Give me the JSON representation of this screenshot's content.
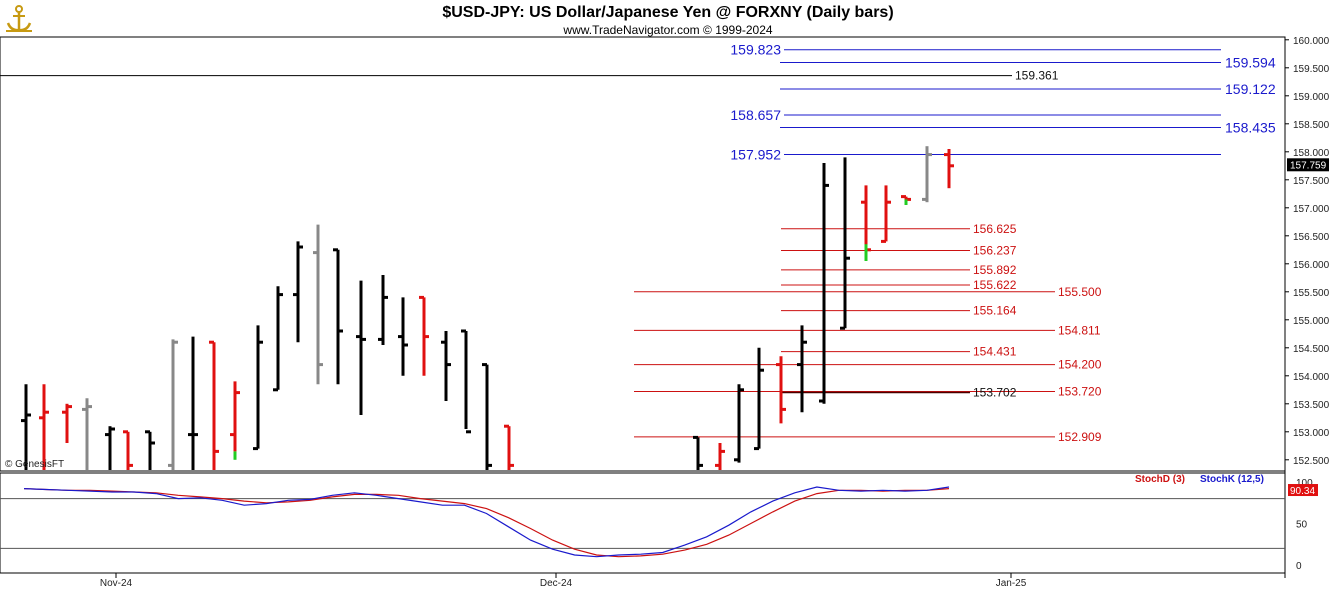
{
  "header": {
    "title": "$USD-JPY:  US Dollar/Japanese Yen @ FORXNY  (Daily bars)",
    "copyright": "www.TradeNavigator.com © 1999-2024"
  },
  "watermark": "© GenesisFT",
  "colors": {
    "up": "#000000",
    "down": "#e01010",
    "neutral": "#888888",
    "blue_level": "#1a1acc",
    "red_level": "#cc1111",
    "stoch_d": "#cc1111",
    "stoch_k": "#1a1acc",
    "last_price_bg": "#000000",
    "stoch_value_bg": "#e01010"
  },
  "chart_data": {
    "type": "ohlc-bar",
    "price_axis": {
      "min": 152.3,
      "max": 160.05,
      "ticks": [
        "160.000",
        "159.500",
        "159.000",
        "158.500",
        "158.000",
        "157.500",
        "157.000",
        "156.500",
        "156.000",
        "155.500",
        "155.000",
        "154.500",
        "154.000",
        "153.500",
        "153.000",
        "152.500"
      ]
    },
    "last_price": "157.759",
    "x_labels": [
      "Nov-24",
      "Dec-24",
      "Jan-25"
    ],
    "levels_blue": [
      {
        "label": "159.823",
        "value": 159.823,
        "side": "left"
      },
      {
        "label": "159.594",
        "value": 159.594,
        "side": "right"
      },
      {
        "label": "159.122",
        "value": 159.122,
        "side": "right"
      },
      {
        "label": "158.657",
        "value": 158.657,
        "side": "left"
      },
      {
        "label": "158.435",
        "value": 158.435,
        "side": "right"
      },
      {
        "label": "157.952",
        "value": 157.952,
        "side": "left"
      }
    ],
    "level_black_top": {
      "label": "159.361",
      "value": 159.361
    },
    "levels_red": [
      {
        "label": "156.625",
        "value": 156.625,
        "short": true
      },
      {
        "label": "156.237",
        "value": 156.237,
        "short": true
      },
      {
        "label": "155.892",
        "value": 155.892,
        "short": true
      },
      {
        "label": "155.622",
        "value": 155.622,
        "short": true
      },
      {
        "label": "155.500",
        "value": 155.5,
        "short": false
      },
      {
        "label": "155.164",
        "value": 155.164,
        "short": true
      },
      {
        "label": "154.811",
        "value": 154.811,
        "short": false
      },
      {
        "label": "154.431",
        "value": 154.431,
        "short": true
      },
      {
        "label": "154.200",
        "value": 154.2,
        "short": false
      },
      {
        "label": "153.720",
        "value": 153.72,
        "short": false
      },
      {
        "label": "152.909",
        "value": 152.909,
        "short": false
      }
    ],
    "level_dark": {
      "label": "153.702",
      "value": 153.702
    },
    "bars": [
      {
        "o": 153.2,
        "h": 153.85,
        "l": 152.3,
        "c": 153.3,
        "t": "up"
      },
      {
        "o": 153.25,
        "h": 153.85,
        "l": 152.3,
        "c": 153.35,
        "t": "down"
      },
      {
        "o": 153.35,
        "h": 153.5,
        "l": 152.8,
        "c": 153.45,
        "t": "down"
      },
      {
        "o": 153.4,
        "h": 153.6,
        "l": 152.3,
        "c": 153.45,
        "t": "neutral"
      },
      {
        "o": 152.95,
        "h": 153.1,
        "l": 152.3,
        "c": 153.05,
        "t": "up"
      },
      {
        "o": 153.0,
        "h": 153.0,
        "l": 152.3,
        "c": 152.4,
        "t": "down"
      },
      {
        "o": 153.0,
        "h": 153.0,
        "l": 152.3,
        "c": 152.8,
        "t": "up"
      },
      {
        "o": 152.4,
        "h": 154.65,
        "l": 152.3,
        "c": 154.6,
        "t": "neutral"
      },
      {
        "o": 152.95,
        "h": 154.7,
        "l": 152.3,
        "c": 152.95,
        "t": "up"
      },
      {
        "o": 154.6,
        "h": 154.6,
        "l": 152.3,
        "c": 152.65,
        "t": "down"
      },
      {
        "o": 152.95,
        "h": 153.9,
        "l": 152.65,
        "c": 153.7,
        "t": "down"
      },
      {
        "o": 152.7,
        "h": 154.9,
        "l": 152.7,
        "c": 154.6,
        "t": "up"
      },
      {
        "o": 153.75,
        "h": 155.6,
        "l": 153.75,
        "c": 155.45,
        "t": "up"
      },
      {
        "o": 155.45,
        "h": 156.4,
        "l": 154.6,
        "c": 156.3,
        "t": "up"
      },
      {
        "o": 156.2,
        "h": 156.7,
        "l": 153.85,
        "c": 154.2,
        "t": "neutral"
      },
      {
        "o": 156.25,
        "h": 156.25,
        "l": 153.85,
        "c": 154.8,
        "t": "up"
      },
      {
        "o": 154.7,
        "h": 155.7,
        "l": 153.3,
        "c": 154.65,
        "t": "up"
      },
      {
        "o": 154.65,
        "h": 155.8,
        "l": 154.55,
        "c": 155.4,
        "t": "up"
      },
      {
        "o": 154.7,
        "h": 155.4,
        "l": 154.0,
        "c": 154.55,
        "t": "up"
      },
      {
        "o": 155.4,
        "h": 155.4,
        "l": 154.0,
        "c": 154.7,
        "t": "down"
      },
      {
        "o": 154.6,
        "h": 154.8,
        "l": 153.55,
        "c": 154.2,
        "t": "up"
      },
      {
        "o": 154.8,
        "h": 154.8,
        "l": 153.05,
        "c": 153.0,
        "t": "up"
      },
      {
        "o": 154.2,
        "h": 154.2,
        "l": 152.3,
        "c": 152.4,
        "t": "up"
      },
      {
        "o": 153.1,
        "h": 153.1,
        "l": 152.3,
        "c": 152.4,
        "t": "down"
      },
      {
        "o": 152.9,
        "h": 152.9,
        "l": 152.3,
        "c": 152.4,
        "t": "up"
      },
      {
        "o": 152.4,
        "h": 152.8,
        "l": 152.3,
        "c": 152.65,
        "t": "down"
      },
      {
        "o": 152.5,
        "h": 153.85,
        "l": 152.45,
        "c": 153.75,
        "t": "up"
      },
      {
        "o": 152.7,
        "h": 154.5,
        "l": 152.7,
        "c": 154.1,
        "t": "up"
      },
      {
        "o": 154.2,
        "h": 154.35,
        "l": 153.15,
        "c": 153.4,
        "t": "down"
      },
      {
        "o": 154.2,
        "h": 154.9,
        "l": 153.35,
        "c": 154.6,
        "t": "up"
      },
      {
        "o": 153.55,
        "h": 157.8,
        "l": 153.5,
        "c": 157.4,
        "t": "up"
      },
      {
        "o": 154.85,
        "h": 157.9,
        "l": 154.85,
        "c": 156.1,
        "t": "up"
      },
      {
        "o": 157.1,
        "h": 157.4,
        "l": 156.1,
        "c": 156.25,
        "t": "down"
      },
      {
        "o": 156.4,
        "h": 157.4,
        "l": 156.4,
        "c": 157.1,
        "t": "down"
      },
      {
        "o": 157.2,
        "h": 157.2,
        "l": 157.05,
        "c": 157.15,
        "t": "down"
      },
      {
        "o": 157.15,
        "h": 158.1,
        "l": 157.1,
        "c": 157.95,
        "t": "neutral"
      },
      {
        "o": 157.95,
        "h": 158.05,
        "l": 157.35,
        "c": 157.75,
        "t": "down"
      }
    ],
    "stochastic": {
      "legend": [
        {
          "name": "StochD (3)",
          "color": "#cc1111"
        },
        {
          "name": "StochK (12,5)",
          "color": "#1a1acc"
        }
      ],
      "ticks": [
        "100",
        "50",
        "0"
      ],
      "bands": [
        80,
        20
      ],
      "value_label": "90.34",
      "stoch_k": [
        92,
        91,
        90,
        89,
        88,
        88,
        86,
        80,
        81,
        78,
        72,
        74,
        78,
        79,
        84,
        87,
        84,
        80,
        76,
        72,
        72,
        62,
        46,
        30,
        19,
        12,
        10,
        12,
        13,
        15,
        24,
        34,
        48,
        64,
        77,
        87,
        94,
        90,
        89,
        90,
        89,
        90,
        94
      ],
      "stoch_d": [
        92,
        91,
        90,
        90,
        89,
        88,
        87,
        84,
        82,
        80,
        77,
        75,
        76,
        78,
        82,
        85,
        85,
        84,
        80,
        77,
        74,
        68,
        57,
        44,
        30,
        19,
        12,
        10,
        11,
        13,
        18,
        25,
        36,
        50,
        64,
        77,
        86,
        90,
        90,
        89,
        90,
        90,
        92
      ]
    }
  }
}
